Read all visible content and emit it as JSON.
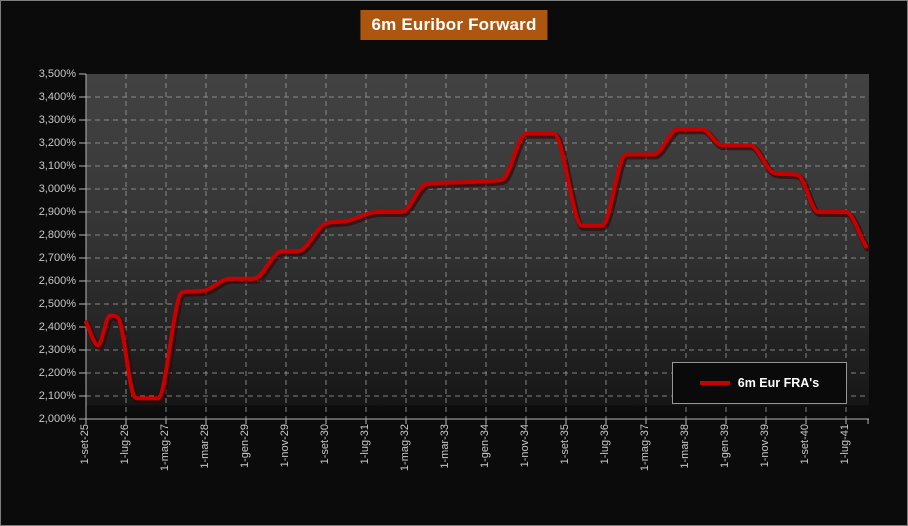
{
  "window": {
    "background": "#0b0b0b",
    "border_color": "#7d7d7d"
  },
  "title": {
    "text": "6m Euribor Forward",
    "background": "#AC560F",
    "text_color": "#FFFFFF"
  },
  "legend": {
    "label": "6m Eur FRA's",
    "swatch_color": "#C80000",
    "border_color": "#969696",
    "background": "#0A0A0A",
    "position": "inside-bottom-right"
  },
  "chart_data": {
    "type": "line",
    "title": "6m Euribor Forward",
    "grid": {
      "style": "dashed",
      "color": "#9C9C9C",
      "horizontal": true,
      "vertical": true
    },
    "x_axis": {
      "tick_labels": [
        "1-set-25",
        "1-lug-26",
        "1-mag-27",
        "1-mar-28",
        "1-gen-29",
        "1-nov-29",
        "1-set-30",
        "1-lug-31",
        "1-mag-32",
        "1-mar-33",
        "1-gen-34",
        "1-nov-34",
        "1-set-35",
        "1-lug-36",
        "1-mag-37",
        "1-mar-38",
        "1-gen-39",
        "1-nov-39",
        "1-set-40",
        "1-lug-41"
      ],
      "months_between_ticks": 10,
      "start_month": "set-25",
      "last_data_month": "dic-41",
      "label_rotation_deg": 90
    },
    "y_axis": {
      "tick_labels": [
        "3,500%",
        "3,400%",
        "3,300%",
        "3,200%",
        "3,100%",
        "3,000%",
        "2,900%",
        "2,800%",
        "2,700%",
        "2,600%",
        "2,500%",
        "2,400%",
        "2,300%",
        "2,200%",
        "2,100%",
        "2,000%"
      ],
      "min": 2.0,
      "max": 3.5,
      "step": 0.1,
      "format": "percent, Italian decimal comma"
    },
    "series": [
      {
        "name": "6m Eur FRA's",
        "color": "#C80000",
        "points": [
          {
            "m": 0,
            "date": "set-25",
            "v": 2.42
          },
          {
            "m": 3,
            "date": "dic-25",
            "v": 2.32
          },
          {
            "m": 6,
            "date": "mar-26",
            "v": 2.45
          },
          {
            "m": 8,
            "date": "mag-26",
            "v": 2.44
          },
          {
            "m": 12,
            "date": "set-26",
            "v": 2.1
          },
          {
            "m": 13,
            "date": "ott-26",
            "v": 2.09
          },
          {
            "m": 18,
            "date": "mar-27",
            "v": 2.09
          },
          {
            "m": 24,
            "date": "set-27",
            "v": 2.55
          },
          {
            "m": 30,
            "date": "mar-28",
            "v": 2.56
          },
          {
            "m": 36,
            "date": "set-28",
            "v": 2.61
          },
          {
            "m": 42,
            "date": "mar-29",
            "v": 2.61
          },
          {
            "m": 49,
            "date": "ott-29",
            "v": 2.73
          },
          {
            "m": 53,
            "date": "feb-30",
            "v": 2.73
          },
          {
            "m": 60,
            "date": "set-30",
            "v": 2.85
          },
          {
            "m": 65,
            "date": "feb-31",
            "v": 2.86
          },
          {
            "m": 73,
            "date": "ott-31",
            "v": 2.9
          },
          {
            "m": 79,
            "date": "apr-32",
            "v": 2.9
          },
          {
            "m": 85,
            "date": "ott-32",
            "v": 3.02
          },
          {
            "m": 95,
            "date": "ago-33",
            "v": 3.03
          },
          {
            "m": 104,
            "date": "mag-34",
            "v": 3.04
          },
          {
            "m": 110,
            "date": "nov-34",
            "v": 3.24
          },
          {
            "m": 117,
            "date": "giu-35",
            "v": 3.24
          },
          {
            "m": 124,
            "date": "gen-36",
            "v": 2.84
          },
          {
            "m": 129,
            "date": "giu-36",
            "v": 2.84
          },
          {
            "m": 135,
            "date": "dic-36",
            "v": 3.15
          },
          {
            "m": 142,
            "date": "lug-37",
            "v": 3.15
          },
          {
            "m": 148,
            "date": "gen-38",
            "v": 3.26
          },
          {
            "m": 154,
            "date": "lug-38",
            "v": 3.26
          },
          {
            "m": 159,
            "date": "dic-38",
            "v": 3.19
          },
          {
            "m": 166,
            "date": "lug-39",
            "v": 3.19
          },
          {
            "m": 172,
            "date": "gen-40",
            "v": 3.07
          },
          {
            "m": 178,
            "date": "lug-40",
            "v": 3.06
          },
          {
            "m": 183,
            "date": "dic-40",
            "v": 2.9
          },
          {
            "m": 190,
            "date": "lug-41",
            "v": 2.9
          },
          {
            "m": 195,
            "date": "dic-41",
            "v": 2.75
          }
        ]
      }
    ],
    "legend_entries": [
      "6m Eur FRA's"
    ],
    "plot_background": "dark gray vertical gradient"
  }
}
